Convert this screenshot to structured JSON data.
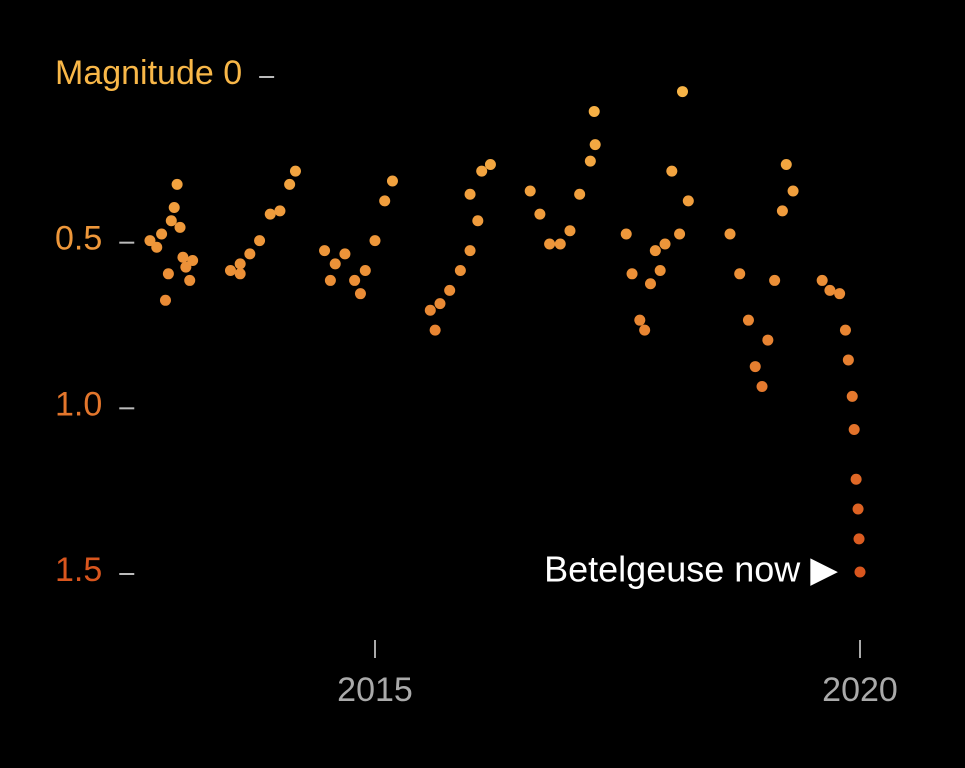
{
  "chart_data": {
    "type": "scatter",
    "annotation": "Betelgeuse now ▶",
    "x": [
      2012.68,
      2012.75,
      2012.8,
      2012.84,
      2012.87,
      2012.9,
      2012.93,
      2012.96,
      2012.99,
      2013.02,
      2013.05,
      2013.09,
      2013.12,
      2013.51,
      2013.61,
      2013.61,
      2013.71,
      2013.81,
      2013.92,
      2014.02,
      2014.12,
      2014.18,
      2014.48,
      2014.54,
      2014.59,
      2014.69,
      2014.79,
      2014.85,
      2014.9,
      2015.0,
      2015.1,
      2015.18,
      2015.57,
      2015.62,
      2015.67,
      2015.77,
      2015.88,
      2015.98,
      2016.06,
      2015.98,
      2016.1,
      2016.19,
      2016.6,
      2016.7,
      2016.8,
      2016.91,
      2017.01,
      2017.11,
      2017.22,
      2017.27,
      2017.26,
      2017.59,
      2017.65,
      2017.73,
      2017.78,
      2017.84,
      2017.89,
      2017.94,
      2017.99,
      2018.06,
      2018.14,
      2018.23,
      2018.17,
      2018.66,
      2018.76,
      2018.85,
      2018.92,
      2018.99,
      2019.05,
      2019.12,
      2019.2,
      2019.24,
      2019.31,
      2019.61,
      2019.69,
      2019.79,
      2019.85,
      2019.88,
      2019.92,
      2019.94,
      2019.96,
      2019.98,
      2019.99,
      2020.0
    ],
    "values": [
      0.5,
      0.52,
      0.48,
      0.68,
      0.6,
      0.44,
      0.4,
      0.33,
      0.46,
      0.55,
      0.58,
      0.62,
      0.56,
      0.59,
      0.57,
      0.6,
      0.54,
      0.5,
      0.42,
      0.41,
      0.33,
      0.29,
      0.53,
      0.62,
      0.57,
      0.54,
      0.62,
      0.66,
      0.59,
      0.5,
      0.38,
      0.32,
      0.71,
      0.77,
      0.69,
      0.65,
      0.59,
      0.53,
      0.44,
      0.36,
      0.29,
      0.27,
      0.35,
      0.42,
      0.51,
      0.51,
      0.47,
      0.36,
      0.26,
      0.21,
      0.11,
      0.48,
      0.6,
      0.74,
      0.77,
      0.63,
      0.53,
      0.59,
      0.51,
      0.29,
      0.48,
      0.38,
      0.05,
      0.48,
      0.6,
      0.74,
      0.88,
      0.94,
      0.8,
      0.62,
      0.41,
      0.27,
      0.35,
      0.62,
      0.65,
      0.66,
      0.77,
      0.86,
      0.97,
      1.07,
      1.22,
      1.31,
      1.4,
      1.5
    ],
    "color_scale": [
      "#f8b748",
      "#d9561e"
    ],
    "xlim": [
      2012.5,
      2020.5
    ],
    "xticks": [
      2015,
      2020
    ],
    "ylim": [
      0,
      1.5
    ],
    "y_inverted": true,
    "yticks": [
      {
        "value": 0,
        "label": "Magnitude 0"
      },
      0.5,
      {
        "value": 1,
        "label": "1.0"
      },
      1.5
    ]
  }
}
